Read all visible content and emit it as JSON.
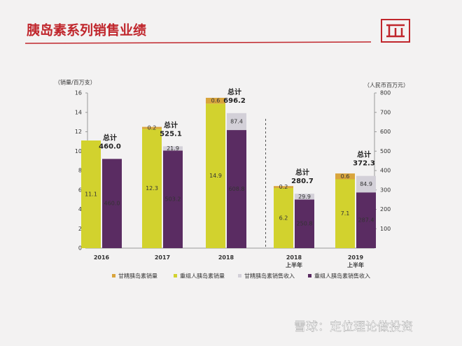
{
  "header": {
    "title": "胰岛素系列销售业绩"
  },
  "chart_data": {
    "type": "bar",
    "y_label": "（销量/百万支）",
    "y2_label": "（人民币百万元）",
    "categories": [
      "2016",
      "2017",
      "2018",
      "2018\n上半年",
      "2019\n上半年"
    ],
    "series": [
      {
        "name": "甘精胰岛素销量",
        "color": "#d9a53c",
        "axis": "y",
        "stack": "volume",
        "values": [
          null,
          0.2,
          0.6,
          0.2,
          0.6
        ]
      },
      {
        "name": "重组人胰岛素销量",
        "color": "#d2d22e",
        "axis": "y",
        "stack": "volume",
        "values": [
          11.1,
          12.3,
          14.9,
          6.2,
          7.1
        ]
      },
      {
        "name": "甘精胰岛素销售收入",
        "color": "#d3d0d8",
        "axis": "y2",
        "stack": "revenue",
        "values": [
          null,
          21.9,
          87.4,
          29.9,
          84.9
        ]
      },
      {
        "name": "重组人胰岛素销售收入",
        "color": "#5a2c62",
        "axis": "y2",
        "stack": "revenue",
        "values": [
          460.0,
          503.2,
          608.8,
          250.8,
          287.4
        ],
        "value_labels": [
          "460.0",
          "503.2",
          "608.8",
          "250.8",
          "287.4"
        ]
      }
    ],
    "total_title": "总计",
    "totals": [
      460.0,
      525.1,
      696.2,
      280.7,
      372.3
    ],
    "total_labels": [
      "460.0",
      "525.1",
      "696.2",
      "280.7",
      "372.3"
    ],
    "ylim": [
      0,
      16
    ],
    "yticks": [
      0,
      2,
      4,
      6,
      8,
      10,
      12,
      14,
      16
    ],
    "y2lim": [
      0,
      800
    ],
    "y2ticks": [
      100,
      200,
      300,
      400,
      500,
      600,
      700,
      800
    ],
    "legend": "bottom"
  },
  "footer": {
    "watermark": "雪球：定位理论做投资"
  }
}
